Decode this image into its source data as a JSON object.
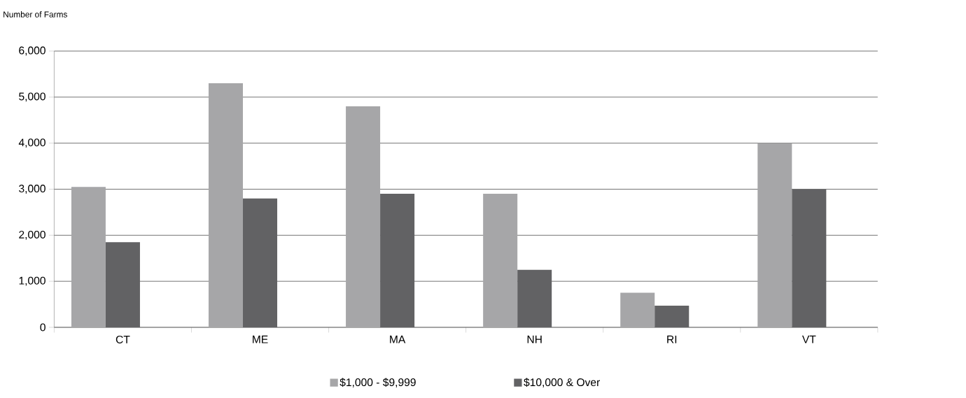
{
  "chart_data": {
    "type": "bar",
    "ylabel": "Number of Farms",
    "categories": [
      "CT",
      "ME",
      "MA",
      "NH",
      "RI",
      "VT"
    ],
    "series": [
      {
        "name": "$1,000 - $9,999",
        "color": "#a6a6a8",
        "values": [
          3050,
          5300,
          4800,
          2900,
          750,
          4000
        ]
      },
      {
        "name": "$10,000 & Over",
        "color": "#626264",
        "values": [
          1850,
          2800,
          2900,
          1250,
          470,
          3000
        ]
      }
    ],
    "ylim": [
      0,
      6000
    ],
    "yticks": [
      {
        "value": 0,
        "label": "0"
      },
      {
        "value": 1000,
        "label": "1,000"
      },
      {
        "value": 2000,
        "label": "2,000"
      },
      {
        "value": 3000,
        "label": "3,000"
      },
      {
        "value": 4000,
        "label": "4,000"
      },
      {
        "value": 5000,
        "label": "5,000"
      },
      {
        "value": 6000,
        "label": "6,000"
      }
    ],
    "grid": "y",
    "legend": "bottom"
  }
}
